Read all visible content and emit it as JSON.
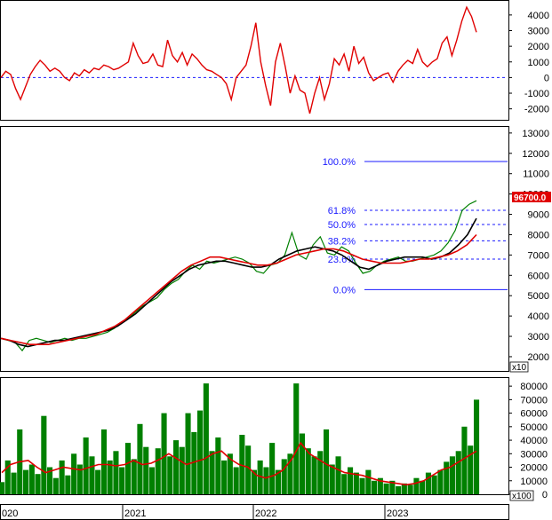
{
  "chart_data": [
    {
      "type": "line",
      "panel": "oscillator",
      "y_ticks": [
        4000,
        3000,
        2000,
        1000,
        0,
        -1000,
        -2000
      ],
      "ylim": [
        -2700,
        4900
      ],
      "reference_line": 0,
      "series": [
        {
          "color": "#e00000",
          "values": [
            0,
            400,
            200,
            -700,
            -1400,
            -600,
            200,
            700,
            1100,
            800,
            400,
            600,
            400,
            0,
            -200,
            300,
            100,
            500,
            300,
            600,
            500,
            800,
            700,
            500,
            600,
            800,
            1000,
            2200,
            1400,
            900,
            1000,
            1500,
            800,
            700,
            2400,
            1400,
            1000,
            1600,
            800,
            1500,
            1200,
            800,
            500,
            400,
            200,
            0,
            -400,
            -1400,
            0,
            400,
            800,
            2000,
            3500,
            1000,
            -500,
            -1800,
            1000,
            2200,
            700,
            -1000,
            100,
            -800,
            -1000,
            -2300,
            -1000,
            0,
            -1400,
            -400,
            1200,
            800,
            1500,
            400,
            2000,
            900,
            1300,
            300,
            -200,
            0,
            200,
            300,
            -300,
            400,
            800,
            1100,
            900,
            1800,
            1000,
            700,
            1000,
            1200,
            2200,
            2600,
            1400,
            2400,
            3600,
            4500,
            3900,
            2900
          ]
        }
      ]
    },
    {
      "type": "line",
      "panel": "price",
      "y_ticks": [
        13000,
        12000,
        11000,
        10000,
        9000,
        8000,
        7000,
        6000,
        5000,
        4000,
        3000,
        2000
      ],
      "ylim": [
        1300,
        13300
      ],
      "y_unit_note": "x10",
      "last_price_label": "96700.0",
      "last_price_color": "#e00000",
      "fibonacci": [
        {
          "label": "100.0%",
          "value": 11600,
          "style": "solid"
        },
        {
          "label": "61.8%",
          "value": 9200,
          "style": "dashed"
        },
        {
          "label": "50.0%",
          "value": 8500,
          "style": "dashed"
        },
        {
          "label": "38.2%",
          "value": 7700,
          "style": "dashed"
        },
        {
          "label": "23.6%",
          "value": 6800,
          "style": "dashed"
        },
        {
          "label": "0.0%",
          "value": 5300,
          "style": "solid"
        }
      ],
      "series": [
        {
          "color": "#008000",
          "values": [
            2900,
            2800,
            2700,
            2300,
            2800,
            2900,
            2800,
            2700,
            2800,
            2900,
            2800,
            2900,
            2900,
            3000,
            3100,
            3200,
            3400,
            3700,
            3900,
            4200,
            4500,
            4700,
            4900,
            5300,
            5600,
            5800,
            6200,
            6500,
            6300,
            6700,
            6600,
            6700,
            6800,
            6900,
            6800,
            6600,
            6200,
            6100,
            6500,
            6600,
            7000,
            8100,
            7000,
            6800,
            7500,
            7900,
            7100,
            7000,
            7400,
            7200,
            6600,
            6100,
            6200,
            6500,
            6700,
            6800,
            6900,
            6700,
            6700,
            6800,
            6900,
            7000,
            7200,
            7600,
            8200,
            9200,
            9500,
            9670
          ]
        },
        {
          "color": "#000000",
          "values": [
            2900,
            2800,
            2600,
            2500,
            2600,
            2700,
            2800,
            2800,
            2900,
            3000,
            3100,
            3200,
            3300,
            3500,
            3800,
            4100,
            4500,
            4900,
            5300,
            5700,
            6000,
            6300,
            6500,
            6600,
            6700,
            6700,
            6600,
            6500,
            6400,
            6400,
            6500,
            6800,
            7000,
            7200,
            7300,
            7400,
            7300,
            7200,
            7000,
            6700,
            6400,
            6300,
            6500,
            6700,
            6800,
            6900,
            6900,
            6900,
            6800,
            6900,
            7100,
            7500,
            8000,
            8800
          ]
        },
        {
          "color": "#e00000",
          "values": [
            2900,
            2800,
            2700,
            2600,
            2600,
            2600,
            2700,
            2800,
            2900,
            3000,
            3100,
            3300,
            3500,
            3800,
            4200,
            4600,
            5000,
            5400,
            5800,
            6200,
            6500,
            6700,
            6900,
            6900,
            6800,
            6700,
            6600,
            6500,
            6500,
            6600,
            6800,
            7000,
            7100,
            7200,
            7300,
            7300,
            7200,
            7000,
            6800,
            6700,
            6600,
            6600,
            6600,
            6700,
            6800,
            6800,
            6900,
            7000,
            7200,
            7500,
            8000
          ]
        }
      ]
    },
    {
      "type": "bar",
      "panel": "volume",
      "y_ticks": [
        80000,
        70000,
        60000,
        50000,
        40000,
        30000,
        20000,
        10000,
        0
      ],
      "ylim": [
        0,
        86000
      ],
      "y_unit_note": "x100",
      "bar_color": "#008000",
      "ma_color": "#e00000",
      "values": [
        9000,
        25000,
        16000,
        48000,
        18000,
        22000,
        15000,
        58000,
        20000,
        12000,
        25000,
        14000,
        30000,
        22000,
        42000,
        28000,
        18000,
        48000,
        25000,
        32000,
        20000,
        38000,
        26000,
        52000,
        35000,
        20000,
        34000,
        60000,
        28000,
        40000,
        35000,
        60000,
        46000,
        62000,
        82000,
        32000,
        42000,
        25000,
        30000,
        20000,
        44000,
        36000,
        18000,
        25000,
        20000,
        38000,
        18000,
        26000,
        30000,
        82000,
        45000,
        34000,
        28000,
        32000,
        48000,
        22000,
        28000,
        15000,
        20000,
        16000,
        12000,
        18000,
        10000,
        12000,
        8000,
        10000,
        6000,
        8000,
        7000,
        12000,
        10000,
        16000,
        14000,
        18000,
        24000,
        28000,
        32000,
        50000,
        36000,
        70000
      ],
      "ma": [
        16000,
        22000,
        24000,
        25000,
        20000,
        16000,
        18000,
        20000,
        19000,
        18000,
        20000,
        22000,
        22000,
        21000,
        22000,
        25000,
        22000,
        23000,
        26000,
        30000,
        26000,
        22000,
        24000,
        26000,
        30000,
        32000,
        26000,
        22000,
        20000,
        14000,
        12000,
        14000,
        18000,
        26000,
        38000,
        30000,
        26000,
        22000,
        19000,
        16000,
        15000,
        14000,
        12000,
        10000,
        9000,
        8000,
        7000,
        8000,
        10000,
        14000,
        18000,
        20000,
        24000,
        28000,
        32000
      ]
    }
  ],
  "x_labels": [
    "020",
    "2021",
    "2022",
    "2023"
  ]
}
